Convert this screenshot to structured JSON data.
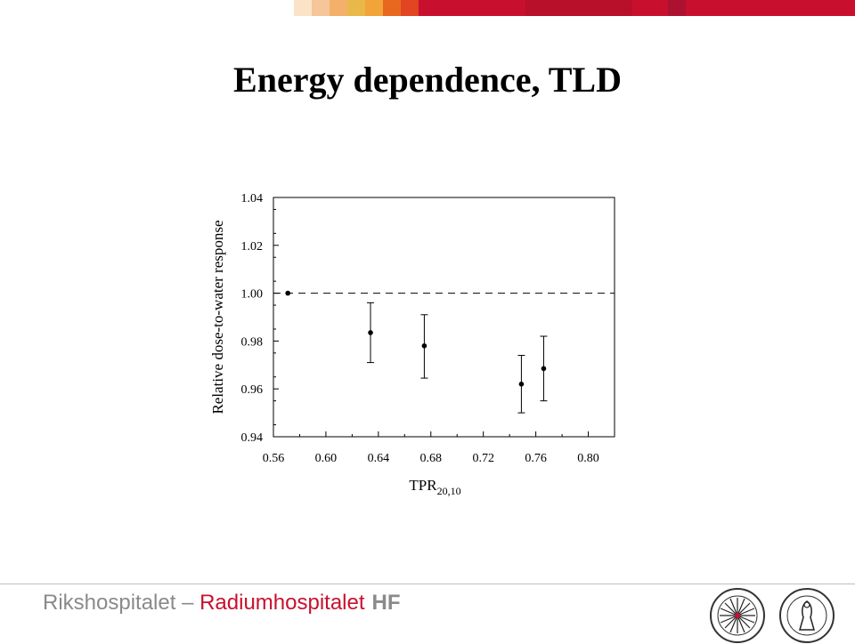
{
  "slide": {
    "title": "Energy dependence, TLD",
    "banner_colors": [
      "#ffffff",
      "#fbe3c8",
      "#f6c59a",
      "#f4b06b",
      "#e8b94a",
      "#f2a33a",
      "#e9681f",
      "#e14521",
      "#c8102e",
      "#b80f2a",
      "#c8102e",
      "#ad1130",
      "#c8102e"
    ]
  },
  "chart_data": {
    "type": "scatter",
    "title": "",
    "xlabel_main": "TPR",
    "xlabel_sub": "20,10",
    "ylabel": "Relative dose-to-water response",
    "xlim": [
      0.56,
      0.82
    ],
    "ylim": [
      0.94,
      1.04
    ],
    "xticks": [
      "0.56",
      "0.60",
      "0.64",
      "0.68",
      "0.72",
      "0.76",
      "0.80"
    ],
    "yticks": [
      "0.94",
      "0.96",
      "0.98",
      "1.00",
      "1.02",
      "1.04"
    ],
    "reference_line": 1.0,
    "grid": false,
    "points": [
      {
        "x": 0.571,
        "y": 1.0,
        "err_low": 1.0,
        "err_high": 1.0
      },
      {
        "x": 0.634,
        "y": 0.9835,
        "err_low": 0.971,
        "err_high": 0.996
      },
      {
        "x": 0.675,
        "y": 0.978,
        "err_low": 0.9645,
        "err_high": 0.991
      },
      {
        "x": 0.749,
        "y": 0.962,
        "err_low": 0.95,
        "err_high": 0.974
      },
      {
        "x": 0.766,
        "y": 0.9685,
        "err_low": 0.955,
        "err_high": 0.982
      }
    ],
    "colors": {
      "marker": "#000000",
      "axis": "#000000"
    }
  },
  "footer": {
    "part1": "Rikshospitalet – ",
    "part2": "Radiumhospitalet",
    "part3": "HF",
    "logo1": "norwegian-radium-hospital-seal-icon",
    "logo2": "university-of-oslo-seal-icon"
  }
}
